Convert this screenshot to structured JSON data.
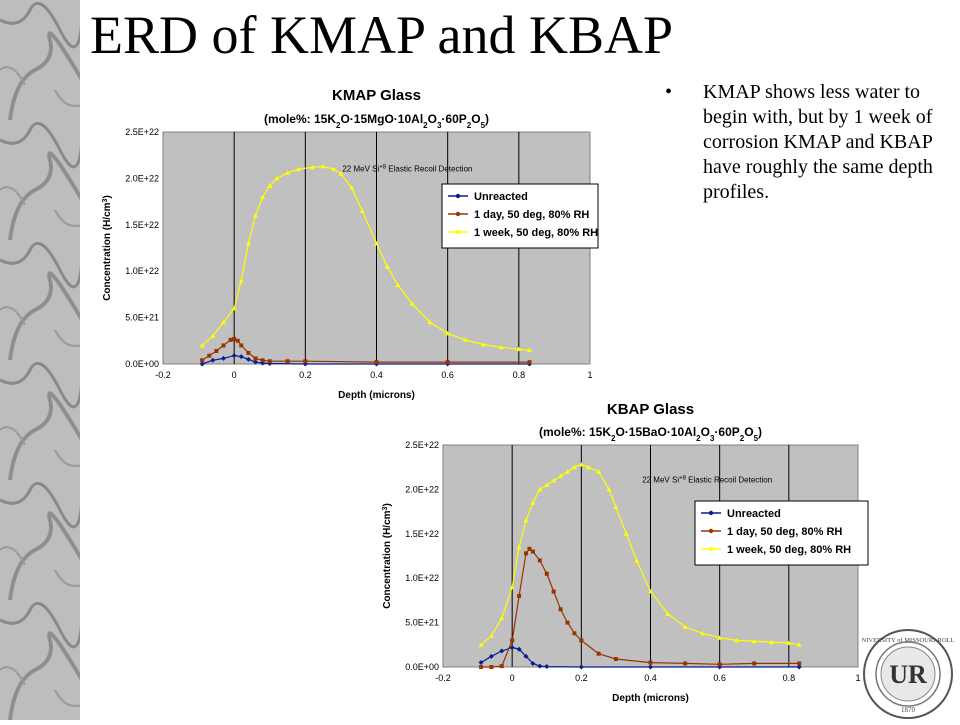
{
  "slide": {
    "title": "ERD of KMAP and KBAP",
    "bullet_symbol": "•",
    "bullet": "KMAP shows less water to begin with, but by 1 week of corrosion KMAP and KBAP have roughly the same depth profiles."
  },
  "seal": {
    "ring_text": "UNIVERSITY of MISSOURI-ROLLA",
    "monogram": "UR",
    "year": "1870"
  },
  "colors": {
    "background": "#ffffff",
    "plot_area": "#c0c0c0",
    "unreacted": "#0a1f8f",
    "one_day": "#993300",
    "one_week": "#ffff00"
  },
  "chart_data": [
    {
      "type": "scatter",
      "title": "KMAP Glass",
      "subtitle": "(mole%: 15K2O·15MgO·10Al2O3·60P2O5)",
      "annotation": "22 MeV Si+8 Elastic Recoil Detection",
      "xlabel": "Depth (microns)",
      "ylabel": "Concentration (H/cm3)",
      "xlim": [
        -0.2,
        1.0
      ],
      "ylim": [
        0,
        2.5e+22
      ],
      "x_ticks": [
        "-0.2",
        "0",
        "0.2",
        "0.4",
        "0.6",
        "0.8",
        "1"
      ],
      "y_ticks": [
        "0.0E+00",
        "5.0E+21",
        "1.0E+22",
        "1.5E+22",
        "2.0E+22",
        "2.5E+22"
      ],
      "grid": true,
      "legend": "right",
      "series": [
        {
          "name": "Unreacted",
          "x": [
            -0.09,
            -0.06,
            -0.03,
            0.0,
            0.02,
            0.04,
            0.06,
            0.08,
            0.1,
            0.2,
            0.4,
            0.6,
            0.83
          ],
          "y": [
            0.0,
            4e+20,
            6e+20,
            9e+20,
            8e+20,
            5e+20,
            2e+20,
            1e+20,
            5e+19,
            0,
            0,
            0,
            0
          ]
        },
        {
          "name": "1 day, 50 deg, 80% RH",
          "x": [
            -0.09,
            -0.07,
            -0.05,
            -0.03,
            -0.01,
            0.0,
            0.01,
            0.02,
            0.04,
            0.06,
            0.08,
            0.1,
            0.15,
            0.2,
            0.4,
            0.6,
            0.83
          ],
          "y": [
            4e+20,
            9e+20,
            1.4e+21,
            2e+21,
            2.6e+21,
            2.7e+21,
            2.5e+21,
            2e+21,
            1.2e+21,
            6e+20,
            4e+20,
            3e+20,
            3e+20,
            3e+20,
            2e+20,
            2e+20,
            2e+20
          ]
        },
        {
          "name": "1 week, 50 deg, 80% RH",
          "x": [
            -0.09,
            -0.06,
            -0.03,
            0.0,
            0.02,
            0.04,
            0.06,
            0.08,
            0.1,
            0.12,
            0.15,
            0.18,
            0.22,
            0.25,
            0.28,
            0.3,
            0.33,
            0.36,
            0.4,
            0.43,
            0.46,
            0.5,
            0.55,
            0.6,
            0.65,
            0.7,
            0.75,
            0.8,
            0.83
          ],
          "y": [
            2e+21,
            3e+21,
            4.5e+21,
            6e+21,
            9e+21,
            1.3e+22,
            1.6e+22,
            1.8e+22,
            1.92e+22,
            2e+22,
            2.06e+22,
            2.1e+22,
            2.12e+22,
            2.13e+22,
            2.1e+22,
            2.05e+22,
            1.9e+22,
            1.65e+22,
            1.3e+22,
            1.05e+22,
            8.5e+21,
            6.5e+21,
            4.5e+21,
            3.3e+21,
            2.6e+21,
            2.1e+21,
            1.8e+21,
            1.6e+21,
            1.5e+21
          ]
        }
      ]
    },
    {
      "type": "scatter",
      "title": "KBAP Glass",
      "subtitle": "(mole%: 15K2O·15BaO·10Al2O3·60P2O5)",
      "annotation": "22 MeV Si+8 Elastic Recoil Detection",
      "xlabel": "Depth (microns)",
      "ylabel": "Concentration (H/cm3)",
      "xlim": [
        -0.2,
        1.0
      ],
      "ylim": [
        0,
        2.5e+22
      ],
      "x_ticks": [
        "-0.2",
        "0",
        "0.2",
        "0.4",
        "0.6",
        "0.8",
        "1"
      ],
      "y_ticks": [
        "0.0E+00",
        "5.0E+21",
        "1.0E+22",
        "1.5E+22",
        "2.0E+22",
        "2.5E+22"
      ],
      "grid": true,
      "legend": "right",
      "series": [
        {
          "name": "Unreacted",
          "x": [
            -0.09,
            -0.06,
            -0.03,
            0.0,
            0.02,
            0.04,
            0.06,
            0.08,
            0.1,
            0.2,
            0.4,
            0.6,
            0.83
          ],
          "y": [
            5e+20,
            1.2e+21,
            1.8e+21,
            2.2e+21,
            2e+21,
            1.2e+21,
            4e+20,
            1e+20,
            5e+19,
            0,
            0,
            0,
            0
          ]
        },
        {
          "name": "1 day, 50 deg, 80% RH",
          "x": [
            -0.09,
            -0.06,
            -0.03,
            0.0,
            0.02,
            0.04,
            0.05,
            0.06,
            0.08,
            0.1,
            0.12,
            0.14,
            0.16,
            0.18,
            0.2,
            0.25,
            0.3,
            0.4,
            0.5,
            0.6,
            0.7,
            0.83
          ],
          "y": [
            0,
            0,
            1e+20,
            3e+21,
            8e+21,
            1.28e+22,
            1.33e+22,
            1.3e+22,
            1.2e+22,
            1.05e+22,
            8.5e+21,
            6.5e+21,
            5e+21,
            3.8e+21,
            3e+21,
            1.5e+21,
            9e+20,
            5e+20,
            4e+20,
            3e+20,
            4e+20,
            4e+20
          ]
        },
        {
          "name": "1 week, 50 deg, 80% RH",
          "x": [
            -0.09,
            -0.06,
            -0.03,
            0.0,
            0.02,
            0.04,
            0.06,
            0.08,
            0.1,
            0.12,
            0.14,
            0.16,
            0.18,
            0.2,
            0.22,
            0.25,
            0.28,
            0.3,
            0.33,
            0.36,
            0.4,
            0.45,
            0.5,
            0.55,
            0.6,
            0.65,
            0.7,
            0.75,
            0.8,
            0.83
          ],
          "y": [
            2.5e+21,
            3.5e+21,
            5.5e+21,
            9e+21,
            1.35e+22,
            1.65e+22,
            1.85e+22,
            2e+22,
            2.05e+22,
            2.1e+22,
            2.15e+22,
            2.2e+22,
            2.25e+22,
            2.28e+22,
            2.25e+22,
            2.2e+22,
            2e+22,
            1.8e+22,
            1.5e+22,
            1.2e+22,
            8.5e+21,
            6e+21,
            4.5e+21,
            3.8e+21,
            3.3e+21,
            3e+21,
            2.9e+21,
            2.8e+21,
            2.7e+21,
            2.5e+21
          ]
        }
      ]
    }
  ]
}
